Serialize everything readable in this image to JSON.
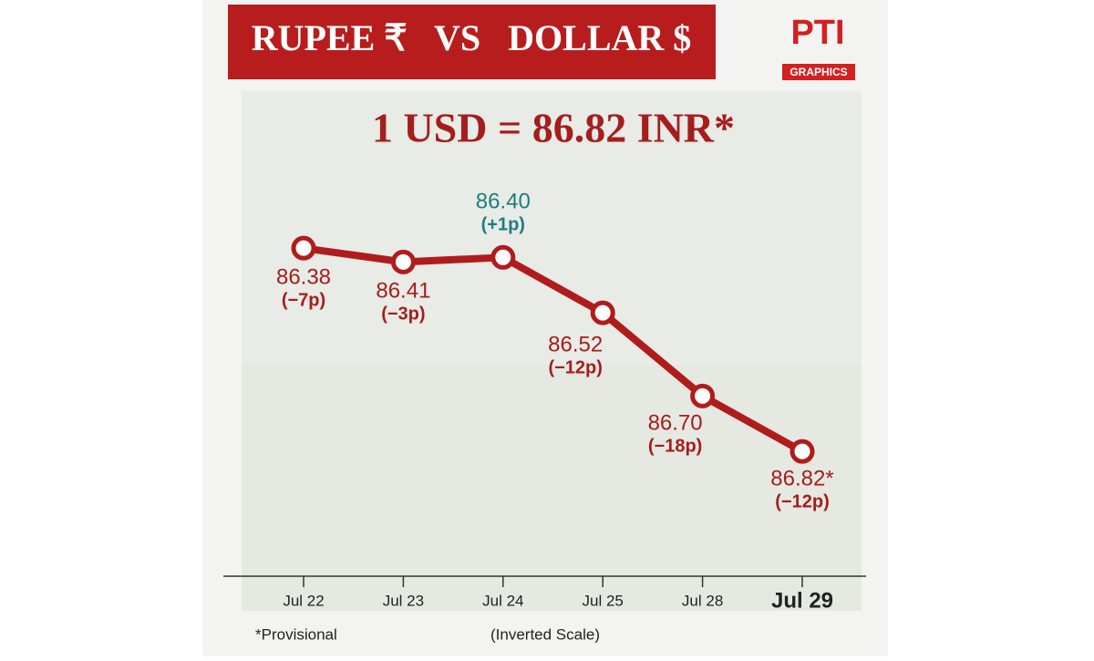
{
  "chart_data": {
    "type": "line",
    "title": "RUPEE ₹   VS   DOLLAR $",
    "subtitle": "1 USD = 86.82 INR*",
    "brand": "PTI",
    "brand_sub": "GRAPHICS",
    "footnote": "*Provisional",
    "scale_note": "(Inverted Scale)",
    "categories": [
      "Jul 22",
      "Jul 23",
      "Jul 24",
      "Jul 25",
      "Jul 28",
      "Jul 29"
    ],
    "values": [
      86.38,
      86.41,
      86.4,
      86.52,
      86.7,
      86.82
    ],
    "value_labels": [
      "86.38",
      "86.41",
      "86.40",
      "86.52",
      "86.70",
      "86.82*"
    ],
    "change_labels": [
      "(−7p)",
      "(−3p)",
      "(+1p)",
      "(−12p)",
      "(−18p)",
      "(−12p)"
    ],
    "label_colors": [
      "#a51d1d",
      "#a51d1d",
      "#1f7d7d",
      "#a51d1d",
      "#a51d1d",
      "#a51d1d"
    ],
    "color": "#b01c1c",
    "ylim": [
      86.06,
      87.09
    ],
    "inverted": true
  }
}
